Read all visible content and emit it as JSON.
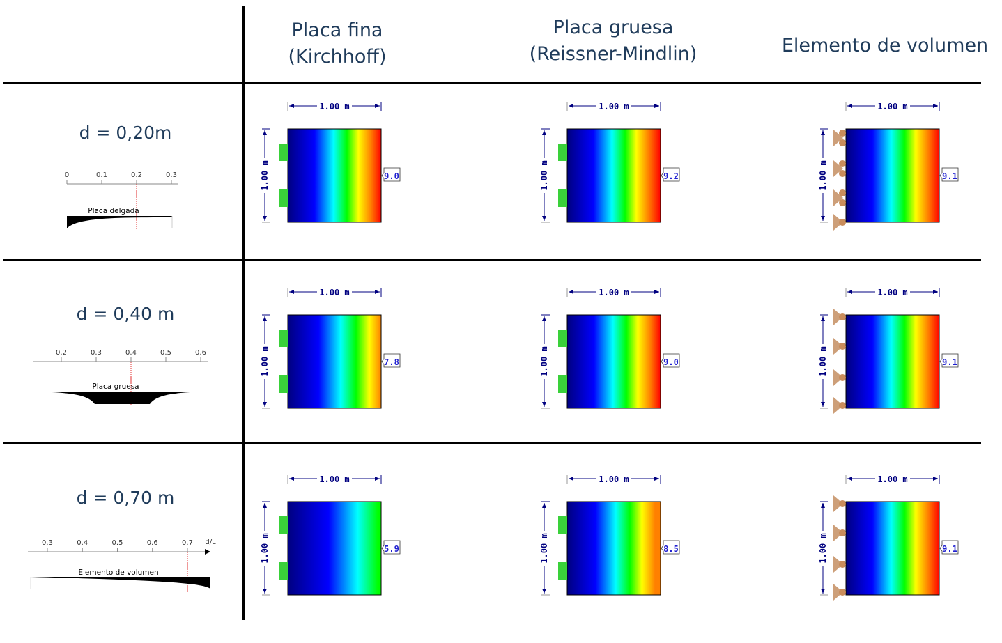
{
  "headers": {
    "col1": [
      "Placa fina",
      "(Kirchhoff)"
    ],
    "col2": [
      "Placa gruesa",
      "(Reissner-Mindlin)"
    ],
    "col3": [
      "Elemento de volumen"
    ]
  },
  "rows": [
    {
      "label": "d = 0,20m",
      "scale": {
        "ticks": [
          "0",
          "0.1",
          "0.2",
          "0.3"
        ],
        "tick_values": [
          0,
          0.1,
          0.2,
          0.3
        ],
        "marker": 0.2,
        "caption": "Placa delgada"
      },
      "values": [
        "9.0",
        "9.2",
        "9.1"
      ]
    },
    {
      "label": "d = 0,40 m",
      "scale": {
        "ticks": [
          "0.2",
          "0.3",
          "0.4",
          "0.5",
          "0.6"
        ],
        "tick_values": [
          0.2,
          0.3,
          0.4,
          0.5,
          0.6
        ],
        "marker": 0.4,
        "caption": "Placa gruesa"
      },
      "values": [
        "7.8",
        "9.0",
        "9.1"
      ]
    },
    {
      "label": "d = 0,70 m",
      "scale": {
        "ticks": [
          "0.3",
          "0.4",
          "0.5",
          "0.6",
          "0.7"
        ],
        "tick_values": [
          0.3,
          0.4,
          0.5,
          0.6,
          0.7
        ],
        "marker": 0.7,
        "caption": "Elemento de volumen",
        "axis_label": "d/L"
      },
      "values": [
        "5.9",
        "8.5",
        "9.1"
      ]
    }
  ],
  "dimension_label": "1.00 m",
  "colors": {
    "support_fixed": "#3ad13a",
    "support_hinge": "#c8956a",
    "dimension": "#000080",
    "text": "#1f3b5a",
    "marker": "#e03030"
  },
  "colormap": [
    "#000080",
    "#0000ff",
    "#00ffff",
    "#00ff00",
    "#ffff00",
    "#ff8000",
    "#ff0000"
  ],
  "max_value": 9.2
}
